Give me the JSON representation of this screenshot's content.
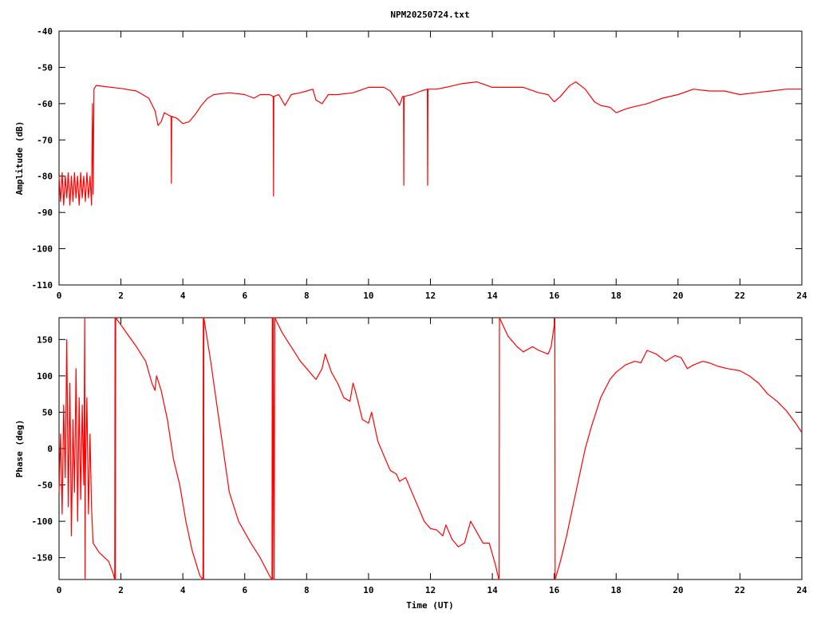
{
  "page_title": "NPM20250724.txt",
  "colors": {
    "trace": "#ff0000",
    "axis": "#000000",
    "background": "#ffffff"
  },
  "chart_data": [
    {
      "type": "line",
      "title": "NPM20250724.txt",
      "xlabel": "",
      "ylabel": "Amplitude (dB)",
      "xlim": [
        0,
        24
      ],
      "ylim": [
        -110,
        -40
      ],
      "xticks": [
        "0",
        "2",
        "4",
        "6",
        "8",
        "10",
        "12",
        "14",
        "16",
        "18",
        "20",
        "22",
        "24"
      ],
      "yticks": [
        "-40",
        "-50",
        "-60",
        "-70",
        "-80",
        "-90",
        "-100",
        "-110"
      ],
      "grid": false,
      "series": [
        {
          "color": "#ff0000",
          "points": [
            [
              0.0,
              -80
            ],
            [
              0.05,
              -87
            ],
            [
              0.1,
              -79
            ],
            [
              0.15,
              -88
            ],
            [
              0.2,
              -80
            ],
            [
              0.25,
              -86
            ],
            [
              0.3,
              -79
            ],
            [
              0.35,
              -88
            ],
            [
              0.4,
              -80
            ],
            [
              0.45,
              -87
            ],
            [
              0.5,
              -79
            ],
            [
              0.55,
              -86
            ],
            [
              0.6,
              -80
            ],
            [
              0.65,
              -88
            ],
            [
              0.7,
              -79
            ],
            [
              0.75,
              -86
            ],
            [
              0.8,
              -80
            ],
            [
              0.85,
              -87
            ],
            [
              0.9,
              -79
            ],
            [
              0.95,
              -86
            ],
            [
              1.0,
              -80
            ],
            [
              1.05,
              -88
            ],
            [
              1.08,
              -60
            ],
            [
              1.1,
              -85
            ],
            [
              1.13,
              -56
            ],
            [
              1.2,
              -55
            ],
            [
              1.5,
              -55.3
            ],
            [
              2.0,
              -55.8
            ],
            [
              2.5,
              -56.5
            ],
            [
              2.9,
              -58.5
            ],
            [
              3.1,
              -62
            ],
            [
              3.2,
              -66
            ],
            [
              3.3,
              -65
            ],
            [
              3.4,
              -62.5
            ],
            [
              3.5,
              -63
            ],
            [
              3.62,
              -63.5
            ],
            [
              3.63,
              -82
            ],
            [
              3.64,
              -63.5
            ],
            [
              3.8,
              -64
            ],
            [
              4.0,
              -65.5
            ],
            [
              4.2,
              -65
            ],
            [
              4.4,
              -63
            ],
            [
              4.6,
              -60.5
            ],
            [
              4.8,
              -58.5
            ],
            [
              5.0,
              -57.5
            ],
            [
              5.5,
              -57
            ],
            [
              6.0,
              -57.5
            ],
            [
              6.3,
              -58.5
            ],
            [
              6.5,
              -57.5
            ],
            [
              6.8,
              -57.5
            ],
            [
              6.92,
              -58
            ],
            [
              6.93,
              -85.5
            ],
            [
              6.94,
              -58
            ],
            [
              7.1,
              -57.5
            ],
            [
              7.3,
              -60.5
            ],
            [
              7.5,
              -57.5
            ],
            [
              7.8,
              -57
            ],
            [
              8.0,
              -56.5
            ],
            [
              8.2,
              -56
            ],
            [
              8.3,
              -59
            ],
            [
              8.5,
              -60
            ],
            [
              8.7,
              -57.5
            ],
            [
              9.0,
              -57.5
            ],
            [
              9.5,
              -57
            ],
            [
              10.0,
              -55.5
            ],
            [
              10.3,
              -55.5
            ],
            [
              10.5,
              -55.5
            ],
            [
              10.7,
              -56.5
            ],
            [
              10.9,
              -59
            ],
            [
              11.0,
              -60.5
            ],
            [
              11.1,
              -58
            ],
            [
              11.13,
              -58
            ],
            [
              11.14,
              -82.5
            ],
            [
              11.15,
              -58
            ],
            [
              11.4,
              -57.5
            ],
            [
              11.7,
              -56.5
            ],
            [
              11.9,
              -56
            ],
            [
              11.91,
              -82.5
            ],
            [
              11.92,
              -56
            ],
            [
              12.2,
              -56
            ],
            [
              12.5,
              -55.5
            ],
            [
              13.0,
              -54.5
            ],
            [
              13.5,
              -54
            ],
            [
              14.0,
              -55.5
            ],
            [
              14.5,
              -55.5
            ],
            [
              15.0,
              -55.5
            ],
            [
              15.5,
              -57
            ],
            [
              15.8,
              -57.5
            ],
            [
              16.0,
              -59.5
            ],
            [
              16.2,
              -58
            ],
            [
              16.5,
              -55
            ],
            [
              16.7,
              -54
            ],
            [
              17.0,
              -56
            ],
            [
              17.3,
              -59.5
            ],
            [
              17.5,
              -60.5
            ],
            [
              17.8,
              -61
            ],
            [
              18.0,
              -62.5
            ],
            [
              18.3,
              -61.5
            ],
            [
              18.5,
              -61
            ],
            [
              19.0,
              -60
            ],
            [
              19.5,
              -58.5
            ],
            [
              20.0,
              -57.5
            ],
            [
              20.5,
              -56
            ],
            [
              21.0,
              -56.5
            ],
            [
              21.5,
              -56.5
            ],
            [
              22.0,
              -57.5
            ],
            [
              22.5,
              -57
            ],
            [
              23.0,
              -56.5
            ],
            [
              23.5,
              -56
            ],
            [
              24.0,
              -56
            ]
          ]
        }
      ]
    },
    {
      "type": "line",
      "title": "",
      "xlabel": "Time (UT)",
      "ylabel": "Phase (deg)",
      "xlim": [
        0,
        24
      ],
      "ylim": [
        -180,
        180
      ],
      "xticks": [
        "0",
        "2",
        "4",
        "6",
        "8",
        "10",
        "12",
        "14",
        "16",
        "18",
        "20",
        "22",
        "24"
      ],
      "yticks": [
        "150",
        "100",
        "50",
        "0",
        "-50",
        "-100",
        "-150"
      ],
      "grid": false,
      "series": [
        {
          "color": "#ff0000",
          "points": [
            [
              0.0,
              -60
            ],
            [
              0.05,
              20
            ],
            [
              0.1,
              -90
            ],
            [
              0.15,
              60
            ],
            [
              0.2,
              -40
            ],
            [
              0.25,
              150
            ],
            [
              0.3,
              -80
            ],
            [
              0.35,
              90
            ],
            [
              0.4,
              -120
            ],
            [
              0.45,
              40
            ],
            [
              0.5,
              -60
            ],
            [
              0.55,
              110
            ],
            [
              0.6,
              -100
            ],
            [
              0.65,
              70
            ],
            [
              0.7,
              -70
            ],
            [
              0.75,
              60
            ],
            [
              0.8,
              -50
            ],
            [
              0.83,
              180
            ],
            [
              0.84,
              -180
            ],
            [
              0.85,
              -40
            ],
            [
              0.9,
              70
            ],
            [
              0.95,
              -90
            ],
            [
              1.0,
              20
            ],
            [
              1.05,
              -80
            ],
            [
              1.1,
              -130
            ],
            [
              1.3,
              -143
            ],
            [
              1.6,
              -155
            ],
            [
              1.75,
              -172
            ],
            [
              1.8,
              -180
            ],
            [
              1.81,
              180
            ],
            [
              1.82,
              -180
            ],
            [
              1.83,
              180
            ],
            [
              2.0,
              170
            ],
            [
              2.2,
              158
            ],
            [
              2.5,
              140
            ],
            [
              2.8,
              120
            ],
            [
              3.0,
              90
            ],
            [
              3.1,
              80
            ],
            [
              3.15,
              100
            ],
            [
              3.3,
              80
            ],
            [
              3.5,
              40
            ],
            [
              3.7,
              -15
            ],
            [
              3.9,
              -50
            ],
            [
              4.1,
              -100
            ],
            [
              4.3,
              -140
            ],
            [
              4.55,
              -175
            ],
            [
              4.65,
              -180
            ],
            [
              4.66,
              180
            ],
            [
              4.67,
              -180
            ],
            [
              4.68,
              180
            ],
            [
              4.9,
              120
            ],
            [
              5.1,
              60
            ],
            [
              5.3,
              0
            ],
            [
              5.5,
              -60
            ],
            [
              5.8,
              -100
            ],
            [
              6.2,
              -130
            ],
            [
              6.5,
              -150
            ],
            [
              6.8,
              -175
            ],
            [
              6.88,
              -180
            ],
            [
              6.89,
              180
            ],
            [
              6.9,
              -180
            ],
            [
              6.92,
              180
            ],
            [
              6.95,
              -180
            ],
            [
              6.97,
              180
            ],
            [
              7.2,
              160
            ],
            [
              7.5,
              140
            ],
            [
              7.8,
              120
            ],
            [
              8.1,
              105
            ],
            [
              8.3,
              95
            ],
            [
              8.5,
              110
            ],
            [
              8.6,
              130
            ],
            [
              8.8,
              105
            ],
            [
              9.0,
              90
            ],
            [
              9.2,
              70
            ],
            [
              9.4,
              65
            ],
            [
              9.5,
              90
            ],
            [
              9.6,
              75
            ],
            [
              9.8,
              40
            ],
            [
              10.0,
              35
            ],
            [
              10.1,
              50
            ],
            [
              10.3,
              10
            ],
            [
              10.5,
              -10
            ],
            [
              10.7,
              -30
            ],
            [
              10.9,
              -35
            ],
            [
              11.0,
              -45
            ],
            [
              11.2,
              -40
            ],
            [
              11.4,
              -60
            ],
            [
              11.6,
              -80
            ],
            [
              11.8,
              -100
            ],
            [
              12.0,
              -110
            ],
            [
              12.2,
              -112
            ],
            [
              12.4,
              -120
            ],
            [
              12.5,
              -105
            ],
            [
              12.7,
              -125
            ],
            [
              12.9,
              -135
            ],
            [
              13.1,
              -130
            ],
            [
              13.3,
              -100
            ],
            [
              13.5,
              -115
            ],
            [
              13.7,
              -130
            ],
            [
              13.9,
              -130
            ],
            [
              14.1,
              -160
            ],
            [
              14.2,
              -178
            ],
            [
              14.22,
              -180
            ],
            [
              14.23,
              180
            ],
            [
              14.5,
              155
            ],
            [
              14.8,
              140
            ],
            [
              15.0,
              133
            ],
            [
              15.3,
              140
            ],
            [
              15.5,
              135
            ],
            [
              15.8,
              130
            ],
            [
              15.9,
              140
            ],
            [
              16.0,
              170
            ],
            [
              16.02,
              180
            ],
            [
              16.03,
              -180
            ],
            [
              16.2,
              -155
            ],
            [
              16.4,
              -120
            ],
            [
              16.6,
              -80
            ],
            [
              16.8,
              -40
            ],
            [
              17.0,
              0
            ],
            [
              17.2,
              30
            ],
            [
              17.5,
              70
            ],
            [
              17.8,
              95
            ],
            [
              18.0,
              105
            ],
            [
              18.3,
              115
            ],
            [
              18.6,
              120
            ],
            [
              18.8,
              118
            ],
            [
              19.0,
              135
            ],
            [
              19.3,
              130
            ],
            [
              19.6,
              120
            ],
            [
              19.9,
              128
            ],
            [
              20.1,
              125
            ],
            [
              20.3,
              110
            ],
            [
              20.5,
              115
            ],
            [
              20.8,
              120
            ],
            [
              21.0,
              118
            ],
            [
              21.3,
              113
            ],
            [
              21.6,
              110
            ],
            [
              22.0,
              107
            ],
            [
              22.3,
              100
            ],
            [
              22.6,
              90
            ],
            [
              22.9,
              75
            ],
            [
              23.2,
              65
            ],
            [
              23.5,
              52
            ],
            [
              23.8,
              35
            ],
            [
              24.0,
              22
            ]
          ]
        }
      ]
    }
  ]
}
